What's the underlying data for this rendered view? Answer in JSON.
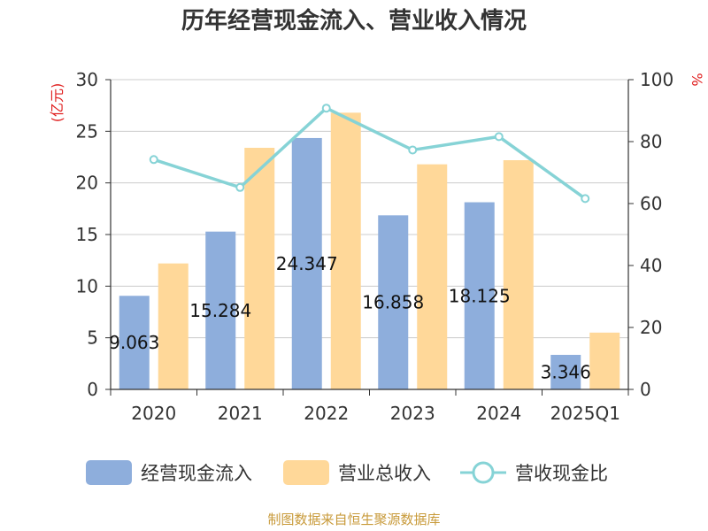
{
  "chart_data": {
    "type": "bar",
    "title": "历年经营现金流入、营业收入情况",
    "categories": [
      "2020",
      "2021",
      "2022",
      "2023",
      "2024",
      "2025Q1"
    ],
    "series": [
      {
        "name": "经营现金流入",
        "type": "bar",
        "axis": "left",
        "color": "#8eaedc",
        "values": [
          9.063,
          15.284,
          24.347,
          16.858,
          18.125,
          3.346
        ]
      },
      {
        "name": "营业总收入",
        "type": "bar",
        "axis": "left",
        "color": "#ffd899",
        "values": [
          12.2,
          23.4,
          26.8,
          21.8,
          22.2,
          5.5
        ]
      },
      {
        "name": "营收现金比",
        "type": "line",
        "axis": "right",
        "color": "#86d3d6",
        "values": [
          74.2,
          65.2,
          90.8,
          77.3,
          81.6,
          61.6
        ]
      }
    ],
    "data_labels": [
      "9.063",
      "15.284",
      "24.347",
      "16.858",
      "18.125",
      "3.346"
    ],
    "y_left": {
      "label": "(亿元)",
      "ylim": [
        0,
        30
      ],
      "ticks": [
        "0",
        "5",
        "10",
        "15",
        "20",
        "25",
        "30"
      ]
    },
    "y_right": {
      "label": "%",
      "ylim": [
        0,
        100
      ],
      "ticks": [
        "0",
        "20",
        "40",
        "60",
        "80",
        "100"
      ]
    },
    "grid": true,
    "legend_position": "bottom",
    "source": "制图数据来自恒生聚源数据库"
  }
}
